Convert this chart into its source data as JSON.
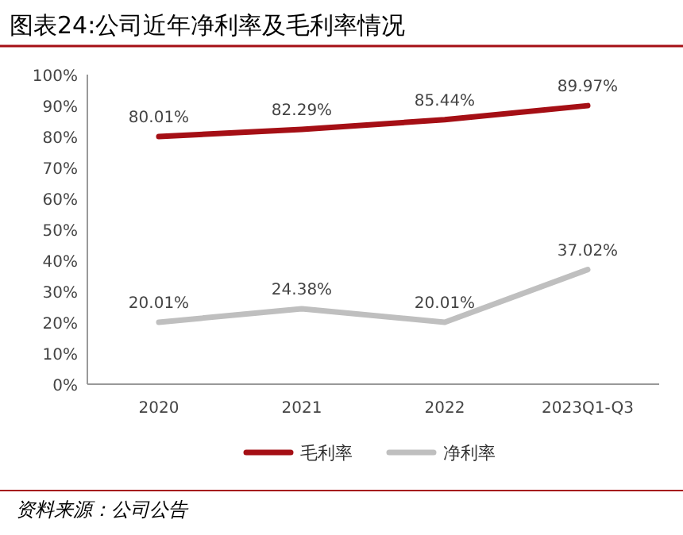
{
  "chart_data": {
    "type": "line",
    "title": "图表24:公司近年净利率及毛利率情况",
    "categories": [
      "2020",
      "2021",
      "2022",
      "2023Q1-Q3"
    ],
    "series": [
      {
        "name": "毛利率",
        "color": "#a50f15",
        "values": [
          80.01,
          82.29,
          85.44,
          89.97
        ],
        "value_labels": [
          "80.01%",
          "82.29%",
          "85.44%",
          "89.97%"
        ]
      },
      {
        "name": "净利率",
        "color": "#bfbfbf",
        "values": [
          20.01,
          24.38,
          20.01,
          37.02
        ],
        "value_labels": [
          "20.01%",
          "24.38%",
          "20.01%",
          "37.02%"
        ]
      }
    ],
    "ylim": [
      0,
      100
    ],
    "yticks": [
      {
        "value": 0,
        "label": "0%"
      },
      {
        "value": 10,
        "label": "10%"
      },
      {
        "value": 20,
        "label": "20%"
      },
      {
        "value": 30,
        "label": "30%"
      },
      {
        "value": 40,
        "label": "40%"
      },
      {
        "value": 50,
        "label": "50%"
      },
      {
        "value": 60,
        "label": "60%"
      },
      {
        "value": 70,
        "label": "70%"
      },
      {
        "value": 80,
        "label": "80%"
      },
      {
        "value": 90,
        "label": "90%"
      },
      {
        "value": 100,
        "label": "100%"
      }
    ],
    "legend": "bottom",
    "grid": false,
    "marker": "none",
    "line_style": "solid",
    "annotations": [
      "资料来源：公司公告"
    ]
  }
}
